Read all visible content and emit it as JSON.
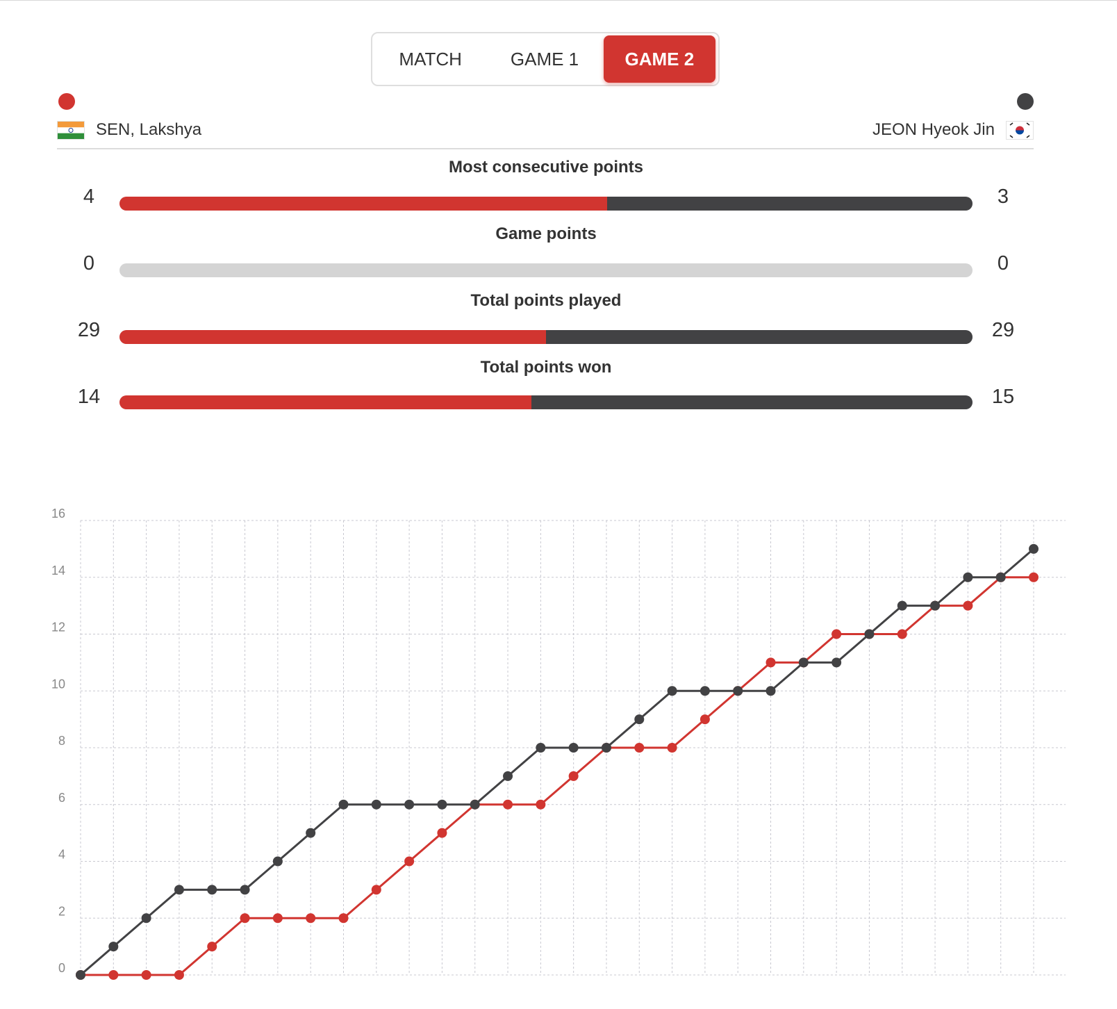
{
  "colors": {
    "player1": "#d13530",
    "player2": "#424244",
    "bar_empty": "#d4d4d4",
    "grid": "#c8c8d0",
    "tick_text": "#888888"
  },
  "tabs": [
    {
      "label": "MATCH",
      "active": false
    },
    {
      "label": "GAME 1",
      "active": false
    },
    {
      "label": "GAME 2",
      "active": true
    }
  ],
  "players": {
    "left": {
      "name": "SEN, Lakshya",
      "flag_icon": "india-flag-icon"
    },
    "right": {
      "name": "JEON Hyeok Jin",
      "flag_icon": "south-korea-flag-icon"
    }
  },
  "stats": [
    {
      "title": "Most consecutive points",
      "left": "4",
      "right": "3"
    },
    {
      "title": "Game points",
      "left": "0",
      "right": "0"
    },
    {
      "title": "Total points played",
      "left": "29",
      "right": "29"
    },
    {
      "title": "Total points won",
      "left": "14",
      "right": "15"
    }
  ],
  "chart_data": {
    "type": "line",
    "title": "",
    "xlabel": "",
    "ylabel": "",
    "x": [
      0,
      1,
      2,
      3,
      4,
      5,
      6,
      7,
      8,
      9,
      10,
      11,
      12,
      13,
      14,
      15,
      16,
      17,
      18,
      19,
      20,
      21,
      22,
      23,
      24,
      25,
      26,
      27,
      28,
      29
    ],
    "ylim": [
      0,
      16
    ],
    "yticks": [
      0,
      2,
      4,
      6,
      8,
      10,
      12,
      14,
      16
    ],
    "grid": true,
    "series": [
      {
        "name": "SEN, Lakshya",
        "color": "#d13530",
        "values": [
          0,
          0,
          0,
          0,
          1,
          2,
          2,
          2,
          2,
          3,
          4,
          5,
          6,
          6,
          6,
          7,
          8,
          8,
          8,
          9,
          10,
          11,
          11,
          12,
          12,
          12,
          13,
          13,
          14,
          14
        ]
      },
      {
        "name": "JEON Hyeok Jin",
        "color": "#424244",
        "values": [
          0,
          1,
          2,
          3,
          3,
          3,
          4,
          5,
          6,
          6,
          6,
          6,
          6,
          7,
          8,
          8,
          8,
          9,
          10,
          10,
          10,
          10,
          11,
          11,
          12,
          13,
          13,
          14,
          14,
          15
        ]
      }
    ]
  }
}
